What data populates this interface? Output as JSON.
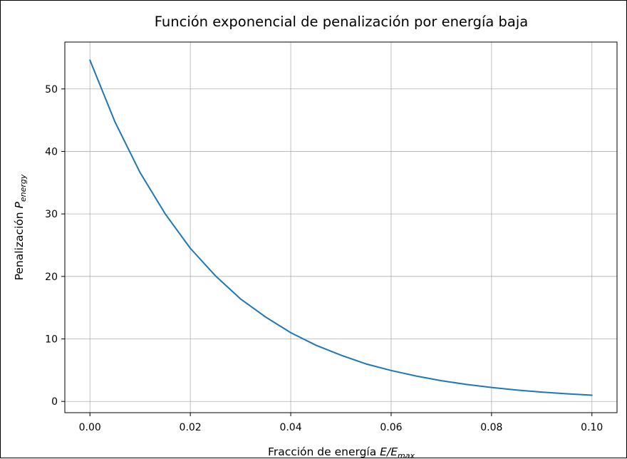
{
  "chart_data": {
    "type": "line",
    "title": "Función exponencial de penalización por energía baja",
    "xlabel": {
      "main": "Fracción de energía ",
      "math": "E/E",
      "sub": "max"
    },
    "ylabel": {
      "main": "Penalización ",
      "math": "P",
      "sub": "energy"
    },
    "xlim": [
      -0.005,
      0.105
    ],
    "ylim": [
      -1.8,
      57.5
    ],
    "xticks": [
      0.0,
      0.02,
      0.04,
      0.06,
      0.08,
      0.1
    ],
    "xtick_labels": [
      "0.00",
      "0.02",
      "0.04",
      "0.06",
      "0.08",
      "0.10"
    ],
    "yticks": [
      0,
      10,
      20,
      30,
      40,
      50
    ],
    "ytick_labels": [
      "0",
      "10",
      "20",
      "30",
      "40",
      "50"
    ],
    "grid": true,
    "series": [
      {
        "color": "#1f77b4",
        "x": [
          0.0,
          0.005,
          0.01,
          0.015,
          0.02,
          0.025,
          0.03,
          0.035,
          0.04,
          0.045,
          0.05,
          0.055,
          0.06,
          0.065,
          0.07,
          0.075,
          0.08,
          0.085,
          0.09,
          0.095,
          0.1
        ],
        "y": [
          54.6,
          44.7,
          36.6,
          30.0,
          24.5,
          20.1,
          16.4,
          13.5,
          11.0,
          9.0,
          7.4,
          6.0,
          4.95,
          4.06,
          3.32,
          2.72,
          2.23,
          1.82,
          1.49,
          1.22,
          1.0
        ]
      }
    ]
  }
}
